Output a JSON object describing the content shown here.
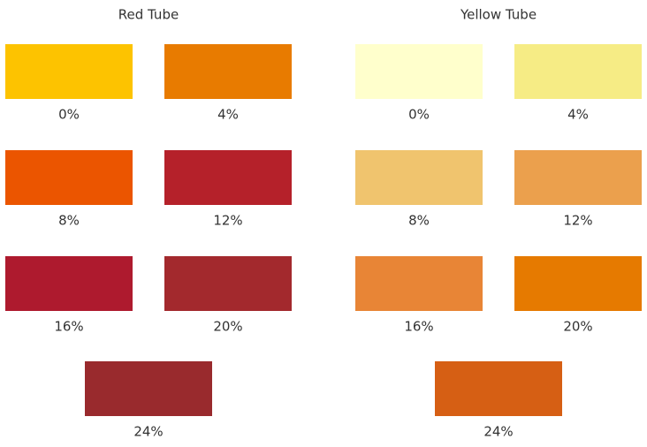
{
  "groups": [
    {
      "title": "Red Tube",
      "swatches": [
        {
          "label": "0%",
          "color": "#fdc300"
        },
        {
          "label": "4%",
          "color": "#e87b00"
        },
        {
          "label": "8%",
          "color": "#eb5500"
        },
        {
          "label": "12%",
          "color": "#b5212a"
        },
        {
          "label": "16%",
          "color": "#ae1a2e"
        },
        {
          "label": "20%",
          "color": "#a3292d"
        },
        {
          "label": "24%",
          "color": "#992a2d"
        }
      ]
    },
    {
      "title": "Yellow Tube",
      "swatches": [
        {
          "label": "0%",
          "color": "#ffffcc"
        },
        {
          "label": "4%",
          "color": "#f6ec85"
        },
        {
          "label": "8%",
          "color": "#f0c46e"
        },
        {
          "label": "12%",
          "color": "#eba04d"
        },
        {
          "label": "16%",
          "color": "#e88536"
        },
        {
          "label": "20%",
          "color": "#e67a00"
        },
        {
          "label": "24%",
          "color": "#d65f14"
        }
      ]
    }
  ]
}
